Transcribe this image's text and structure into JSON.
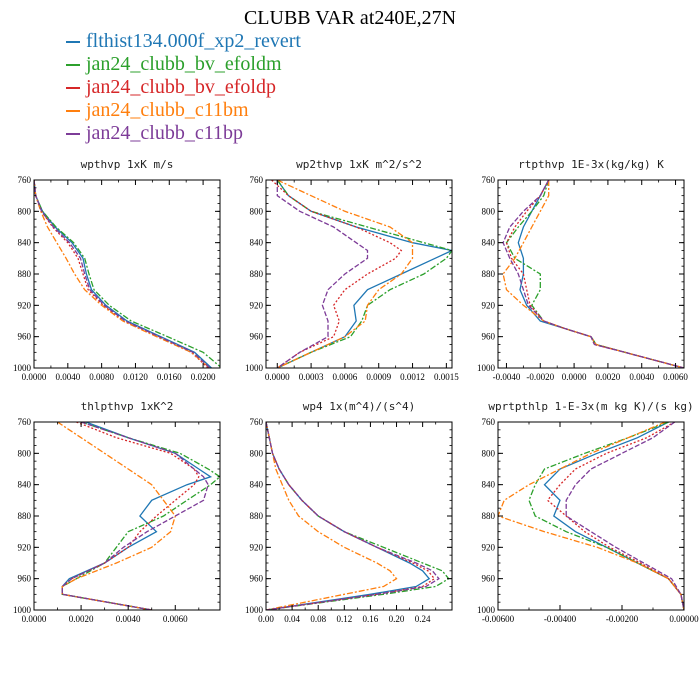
{
  "title": "CLUBB VAR at240E,27N",
  "legend": [
    {
      "name": "flthist134.000f_xp2_revert",
      "color": "#1f77b4"
    },
    {
      "name": "jan24_clubb_bv_efoldm",
      "color": "#2ca02c"
    },
    {
      "name": "jan24_clubb_bv_efoldp",
      "color": "#d62728"
    },
    {
      "name": "jan24_clubb_c11bm",
      "color": "#ff7f0e"
    },
    {
      "name": "jan24_clubb_c11bp",
      "color": "#7d3c98"
    }
  ],
  "chart_data": [
    {
      "type": "line",
      "title": "wpthvp 1xK m/s",
      "xlim": [
        0.0,
        0.022
      ],
      "ylim": [
        760,
        1000
      ],
      "xticks": [
        0.0,
        0.004,
        0.008,
        0.012,
        0.016,
        0.02
      ],
      "xticklabels": [
        "0.0000",
        "0.0040",
        "0.0080",
        "0.0120",
        "0.0160",
        "0.0200"
      ],
      "yticks": [
        760,
        800,
        840,
        880,
        920,
        960,
        1000
      ],
      "y": [
        760,
        780,
        800,
        820,
        840,
        860,
        880,
        900,
        920,
        940,
        960,
        980,
        1000
      ],
      "series": [
        {
          "values": [
            0.0,
            0.0002,
            0.001,
            0.0025,
            0.0045,
            0.0058,
            0.0062,
            0.0068,
            0.0085,
            0.011,
            0.015,
            0.019,
            0.021
          ]
        },
        {
          "values": [
            0.0,
            0.0002,
            0.001,
            0.0026,
            0.0047,
            0.006,
            0.0065,
            0.0071,
            0.0089,
            0.0115,
            0.0158,
            0.02,
            0.0222
          ]
        },
        {
          "values": [
            0.0,
            0.0002,
            0.0009,
            0.0022,
            0.004,
            0.0052,
            0.0058,
            0.0064,
            0.0082,
            0.0106,
            0.0146,
            0.0186,
            0.0206
          ]
        },
        {
          "values": [
            0.0,
            0.0002,
            0.0008,
            0.0016,
            0.0027,
            0.0038,
            0.0048,
            0.006,
            0.008,
            0.0105,
            0.0145,
            0.0186,
            0.0208
          ]
        },
        {
          "values": [
            0.0,
            0.0002,
            0.0009,
            0.0023,
            0.0042,
            0.0055,
            0.006,
            0.0066,
            0.0083,
            0.0108,
            0.0148,
            0.0188,
            0.0208
          ]
        }
      ]
    },
    {
      "type": "line",
      "title": "wp2thvp 1xK m^2/s^2",
      "xlim": [
        -0.0001,
        0.00155
      ],
      "ylim": [
        760,
        1000
      ],
      "xticks": [
        0.0,
        0.0003,
        0.0006,
        0.0009,
        0.0012,
        0.0015
      ],
      "xticklabels": [
        "0.0000",
        "0.0003",
        "0.0006",
        "0.0009",
        "0.0012",
        "0.0015"
      ],
      "yticks": [
        760,
        800,
        840,
        880,
        920,
        960,
        1000
      ],
      "y": [
        760,
        780,
        800,
        820,
        840,
        850,
        860,
        880,
        900,
        920,
        940,
        960,
        980,
        1000
      ],
      "series": [
        {
          "values": [
            0.0,
            0.0001,
            0.0003,
            0.0007,
            0.0012,
            0.00155,
            0.0014,
            0.0011,
            0.0008,
            0.00068,
            0.0007,
            0.0006,
            0.0003,
            0.0
          ]
        },
        {
          "values": [
            0.0,
            0.0001,
            0.0003,
            0.0008,
            0.0013,
            0.00155,
            0.0015,
            0.0013,
            0.001,
            0.0008,
            0.00075,
            0.00065,
            0.0003,
            0.0
          ]
        },
        {
          "values": [
            -5e-05,
            0.0001,
            0.0003,
            0.0007,
            0.001,
            0.0011,
            0.00105,
            0.0008,
            0.0006,
            0.0005,
            0.00055,
            0.0005,
            0.0002,
            0.0
          ]
        },
        {
          "values": [
            0.0,
            0.0003,
            0.0006,
            0.001,
            0.0012,
            0.0012,
            0.0012,
            0.0011,
            0.0009,
            0.0008,
            0.00078,
            0.0006,
            0.0003,
            0.0
          ]
        },
        {
          "values": [
            0.0,
            0.0,
            0.0002,
            0.0005,
            0.0007,
            0.0008,
            0.0008,
            0.0006,
            0.00045,
            0.0004,
            0.00045,
            0.00045,
            0.0002,
            0.0
          ]
        }
      ]
    },
    {
      "type": "line",
      "title": "rtpthvp 1E-3x(kg/kg) K",
      "xlim": [
        -0.0045,
        0.0065
      ],
      "ylim": [
        760,
        1000
      ],
      "xticks": [
        -0.004,
        -0.002,
        0.0,
        0.002,
        0.004,
        0.006
      ],
      "xticklabels": [
        "-0.0040",
        "-0.0020",
        "0.0000",
        "0.0020",
        "0.0040",
        "0.0060"
      ],
      "yticks": [
        760,
        800,
        840,
        880,
        920,
        960,
        1000
      ],
      "y": [
        760,
        780,
        800,
        820,
        840,
        860,
        880,
        900,
        920,
        940,
        950,
        960,
        970,
        980,
        1000
      ],
      "series": [
        {
          "values": [
            -0.0015,
            -0.002,
            -0.0025,
            -0.003,
            -0.0033,
            -0.003,
            -0.003,
            -0.0032,
            -0.0028,
            -0.002,
            -0.0005,
            0.001,
            0.0013,
            0.003,
            0.0065
          ]
        },
        {
          "values": [
            -0.0015,
            -0.0018,
            -0.0025,
            -0.0033,
            -0.004,
            -0.0035,
            -0.002,
            -0.002,
            -0.0025,
            -0.0018,
            -0.0005,
            0.001,
            0.0013,
            0.003,
            0.0065
          ]
        },
        {
          "values": [
            -0.0015,
            -0.002,
            -0.0028,
            -0.0035,
            -0.004,
            -0.0037,
            -0.003,
            -0.0028,
            -0.0026,
            -0.0018,
            -0.0005,
            0.001,
            0.0012,
            0.003,
            0.0065
          ]
        },
        {
          "values": [
            -0.0015,
            -0.0015,
            -0.002,
            -0.0025,
            -0.003,
            -0.0035,
            -0.0042,
            -0.004,
            -0.003,
            -0.0018,
            -0.0005,
            0.001,
            0.0013,
            0.003,
            0.0065
          ]
        },
        {
          "values": [
            -0.0015,
            -0.002,
            -0.003,
            -0.0038,
            -0.0042,
            -0.0038,
            -0.0033,
            -0.003,
            -0.0027,
            -0.0018,
            -0.0005,
            0.001,
            0.0012,
            0.003,
            0.0065
          ]
        }
      ]
    },
    {
      "type": "line",
      "title": "thlpthvp 1xK^2",
      "xlim": [
        0.0,
        0.0079
      ],
      "ylim": [
        760,
        1000
      ],
      "xticks": [
        0.0,
        0.002,
        0.004,
        0.006
      ],
      "xticklabels": [
        "0.0000",
        "0.0020",
        "0.0040",
        "0.0060"
      ],
      "yticks": [
        760,
        800,
        840,
        880,
        920,
        960,
        1000
      ],
      "y": [
        760,
        780,
        800,
        820,
        830,
        840,
        860,
        880,
        900,
        920,
        940,
        960,
        970,
        980,
        1000
      ],
      "series": [
        {
          "values": [
            0.0022,
            0.004,
            0.006,
            0.007,
            0.0075,
            0.0065,
            0.005,
            0.0045,
            0.0052,
            0.004,
            0.003,
            0.0015,
            0.0012,
            0.0012,
            0.005
          ]
        },
        {
          "values": [
            0.002,
            0.004,
            0.0062,
            0.0074,
            0.0079,
            0.0075,
            0.0065,
            0.0055,
            0.004,
            0.0035,
            0.003,
            0.0018,
            0.0012,
            0.0012,
            0.005
          ]
        },
        {
          "values": [
            0.0018,
            0.0035,
            0.0058,
            0.0068,
            0.007,
            0.0068,
            0.006,
            0.0052,
            0.0045,
            0.004,
            0.003,
            0.0016,
            0.0012,
            0.0012,
            0.005
          ]
        },
        {
          "values": [
            0.001,
            0.002,
            0.003,
            0.004,
            0.0045,
            0.005,
            0.0055,
            0.006,
            0.0058,
            0.005,
            0.0035,
            0.0018,
            0.0012,
            0.0012,
            0.005
          ]
        },
        {
          "values": [
            0.002,
            0.004,
            0.006,
            0.0068,
            0.0072,
            0.0074,
            0.0072,
            0.006,
            0.0048,
            0.0038,
            0.003,
            0.0016,
            0.0012,
            0.0012,
            0.005
          ]
        }
      ]
    },
    {
      "type": "line",
      "title": "wp4 1x(m^4)/(s^4)",
      "xlim": [
        0.0,
        0.285
      ],
      "ylim": [
        760,
        1000
      ],
      "xticks": [
        0.0,
        0.04,
        0.08,
        0.12,
        0.16,
        0.2,
        0.24
      ],
      "xticklabels": [
        "0.00",
        "0.04",
        "0.08",
        "0.12",
        "0.16",
        "0.20",
        "0.24"
      ],
      "yticks": [
        760,
        800,
        840,
        880,
        920,
        960,
        1000
      ],
      "y": [
        760,
        780,
        800,
        820,
        840,
        860,
        880,
        900,
        920,
        940,
        950,
        960,
        970,
        980,
        1000
      ],
      "series": [
        {
          "values": [
            0.0,
            0.005,
            0.01,
            0.02,
            0.035,
            0.055,
            0.08,
            0.12,
            0.17,
            0.22,
            0.24,
            0.25,
            0.23,
            0.16,
            0.0
          ]
        },
        {
          "values": [
            0.0,
            0.005,
            0.01,
            0.02,
            0.035,
            0.055,
            0.08,
            0.12,
            0.18,
            0.24,
            0.27,
            0.28,
            0.26,
            0.18,
            0.0
          ]
        },
        {
          "values": [
            0.0,
            0.005,
            0.01,
            0.02,
            0.035,
            0.055,
            0.08,
            0.12,
            0.17,
            0.225,
            0.248,
            0.258,
            0.24,
            0.17,
            0.0
          ]
        },
        {
          "values": [
            0.0,
            0.005,
            0.01,
            0.015,
            0.025,
            0.035,
            0.05,
            0.08,
            0.12,
            0.17,
            0.19,
            0.2,
            0.18,
            0.12,
            0.0
          ]
        },
        {
          "values": [
            0.0,
            0.005,
            0.01,
            0.02,
            0.035,
            0.055,
            0.08,
            0.12,
            0.17,
            0.23,
            0.255,
            0.265,
            0.245,
            0.17,
            0.0
          ]
        }
      ]
    },
    {
      "type": "line",
      "title": "wprtpthlp 1-E-3x(m kg K)/(s kg)",
      "xlim": [
        -0.006,
        0.0
      ],
      "ylim": [
        760,
        1000
      ],
      "xticks": [
        -0.006,
        -0.004,
        -0.002,
        0.0
      ],
      "xticklabels": [
        "-0.00600",
        "-0.00400",
        "-0.00200",
        "0.00000"
      ],
      "yticks": [
        760,
        800,
        840,
        880,
        920,
        960,
        1000
      ],
      "y": [
        760,
        780,
        800,
        820,
        840,
        860,
        880,
        900,
        920,
        940,
        960,
        980,
        1000
      ],
      "series": [
        {
          "values": [
            -0.0005,
            -0.0015,
            -0.0028,
            -0.004,
            -0.0045,
            -0.004,
            -0.0042,
            -0.0035,
            -0.0025,
            -0.0015,
            -0.0005,
            -0.0001,
            0.0
          ]
        },
        {
          "values": [
            -0.0005,
            -0.0018,
            -0.0032,
            -0.0045,
            -0.0048,
            -0.005,
            -0.0048,
            -0.0038,
            -0.0025,
            -0.0015,
            -0.0005,
            -0.0001,
            0.0
          ]
        },
        {
          "values": [
            -0.0003,
            -0.0012,
            -0.0025,
            -0.0035,
            -0.004,
            -0.0044,
            -0.0038,
            -0.0032,
            -0.0024,
            -0.0014,
            -0.0005,
            -0.0001,
            0.0
          ]
        },
        {
          "values": [
            -0.0006,
            -0.0018,
            -0.003,
            -0.004,
            -0.005,
            -0.0058,
            -0.006,
            -0.0045,
            -0.0028,
            -0.0015,
            -0.0005,
            -0.0001,
            0.0
          ]
        },
        {
          "values": [
            -0.0003,
            -0.001,
            -0.002,
            -0.003,
            -0.0035,
            -0.0038,
            -0.0038,
            -0.003,
            -0.0022,
            -0.0013,
            -0.0004,
            -0.0001,
            0.0
          ]
        }
      ]
    }
  ]
}
